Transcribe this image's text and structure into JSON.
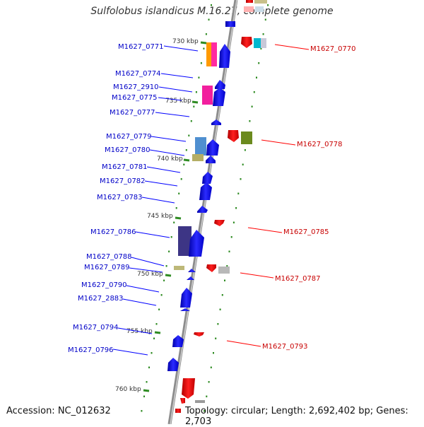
{
  "title": "Sulfolobus islandicus M.16.27, complete genome",
  "footer": {
    "accession": "Accession: NC_012632",
    "topology": "Topology: circular; Length: 2,692,402 bp; Genes: 2,703"
  },
  "scale_labels": [
    "730 kbp",
    "735 kbp",
    "740 kbp",
    "745 kbp",
    "750 kbp",
    "755 kbp",
    "760 kbp"
  ],
  "left_genes": [
    "M1627_0771",
    "M1627_0774",
    "M1627_2910",
    "M1627_0775",
    "M1627_0777",
    "M1627_0779",
    "M1627_0780",
    "M1627_0781",
    "M1627_0782",
    "M1627_0783",
    "M1627_0786",
    "M1627_0788",
    "M1627_0789",
    "M1627_0790",
    "M1627_2883",
    "M1627_0794",
    "M1627_0796"
  ],
  "right_genes": [
    "M1627_0770",
    "M1627_0778",
    "M1627_0785",
    "M1627_0787",
    "M1627_0793"
  ],
  "colors": {
    "forward": "#0000ff",
    "reverse": "#ff0000",
    "backbone": "#8c8c8c",
    "ticks": "#2e8b22"
  }
}
